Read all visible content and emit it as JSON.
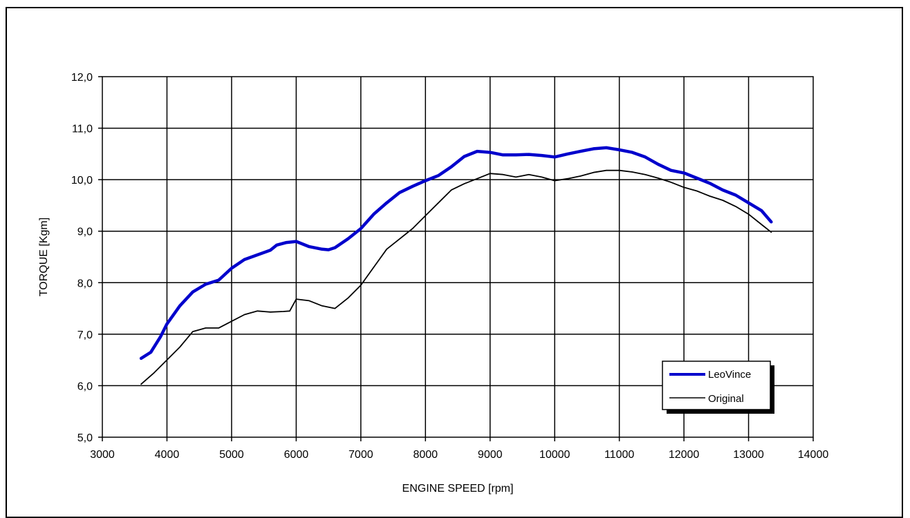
{
  "chart_data": {
    "type": "line",
    "xlabel": "ENGINE SPEED [rpm]",
    "ylabel": "TORQUE [Kgm]",
    "xlim": [
      3000,
      14000
    ],
    "ylim": [
      5.0,
      12.0
    ],
    "x_ticks": [
      "3000",
      "4000",
      "5000",
      "6000",
      "7000",
      "8000",
      "9000",
      "10000",
      "11000",
      "12000",
      "13000",
      "14000"
    ],
    "y_ticks": [
      "5,0",
      "6,0",
      "7,0",
      "8,0",
      "9,0",
      "10,0",
      "11,0",
      "12,0"
    ],
    "grid": true,
    "legend_position": "bottom-right",
    "series": [
      {
        "name": "LeoVince",
        "color": "#0000CC",
        "points": [
          [
            3600,
            6.53
          ],
          [
            3750,
            6.65
          ],
          [
            3900,
            6.95
          ],
          [
            4000,
            7.2
          ],
          [
            4200,
            7.55
          ],
          [
            4400,
            7.82
          ],
          [
            4600,
            7.97
          ],
          [
            4800,
            8.05
          ],
          [
            5000,
            8.28
          ],
          [
            5200,
            8.45
          ],
          [
            5400,
            8.54
          ],
          [
            5600,
            8.63
          ],
          [
            5700,
            8.73
          ],
          [
            5850,
            8.78
          ],
          [
            6000,
            8.8
          ],
          [
            6200,
            8.7
          ],
          [
            6400,
            8.65
          ],
          [
            6500,
            8.64
          ],
          [
            6600,
            8.68
          ],
          [
            6800,
            8.85
          ],
          [
            7000,
            9.05
          ],
          [
            7200,
            9.33
          ],
          [
            7400,
            9.55
          ],
          [
            7600,
            9.75
          ],
          [
            7800,
            9.87
          ],
          [
            8000,
            9.98
          ],
          [
            8200,
            10.08
          ],
          [
            8400,
            10.25
          ],
          [
            8600,
            10.45
          ],
          [
            8800,
            10.55
          ],
          [
            9000,
            10.53
          ],
          [
            9200,
            10.48
          ],
          [
            9400,
            10.48
          ],
          [
            9600,
            10.49
          ],
          [
            9800,
            10.47
          ],
          [
            10000,
            10.44
          ],
          [
            10200,
            10.5
          ],
          [
            10400,
            10.55
          ],
          [
            10600,
            10.6
          ],
          [
            10800,
            10.62
          ],
          [
            11000,
            10.58
          ],
          [
            11200,
            10.53
          ],
          [
            11400,
            10.44
          ],
          [
            11600,
            10.3
          ],
          [
            11800,
            10.18
          ],
          [
            12000,
            10.13
          ],
          [
            12200,
            10.03
          ],
          [
            12400,
            9.93
          ],
          [
            12600,
            9.8
          ],
          [
            12800,
            9.7
          ],
          [
            13000,
            9.55
          ],
          [
            13200,
            9.4
          ],
          [
            13350,
            9.18
          ]
        ]
      },
      {
        "name": "Original",
        "color": "#000000",
        "points": [
          [
            3600,
            6.03
          ],
          [
            3800,
            6.25
          ],
          [
            4000,
            6.5
          ],
          [
            4200,
            6.75
          ],
          [
            4400,
            7.05
          ],
          [
            4600,
            7.12
          ],
          [
            4800,
            7.12
          ],
          [
            5000,
            7.25
          ],
          [
            5200,
            7.38
          ],
          [
            5400,
            7.45
          ],
          [
            5600,
            7.43
          ],
          [
            5800,
            7.44
          ],
          [
            5900,
            7.45
          ],
          [
            6000,
            7.68
          ],
          [
            6200,
            7.65
          ],
          [
            6400,
            7.55
          ],
          [
            6600,
            7.5
          ],
          [
            6800,
            7.7
          ],
          [
            7000,
            7.95
          ],
          [
            7200,
            8.3
          ],
          [
            7400,
            8.65
          ],
          [
            7600,
            8.85
          ],
          [
            7800,
            9.05
          ],
          [
            8000,
            9.3
          ],
          [
            8200,
            9.55
          ],
          [
            8400,
            9.8
          ],
          [
            8600,
            9.92
          ],
          [
            8800,
            10.02
          ],
          [
            9000,
            10.12
          ],
          [
            9200,
            10.1
          ],
          [
            9400,
            10.05
          ],
          [
            9600,
            10.1
          ],
          [
            9800,
            10.05
          ],
          [
            10000,
            9.98
          ],
          [
            10200,
            10.02
          ],
          [
            10400,
            10.07
          ],
          [
            10600,
            10.14
          ],
          [
            10800,
            10.18
          ],
          [
            11000,
            10.18
          ],
          [
            11200,
            10.15
          ],
          [
            11400,
            10.1
          ],
          [
            11600,
            10.03
          ],
          [
            11800,
            9.95
          ],
          [
            12000,
            9.85
          ],
          [
            12200,
            9.78
          ],
          [
            12400,
            9.68
          ],
          [
            12600,
            9.6
          ],
          [
            12800,
            9.48
          ],
          [
            13000,
            9.33
          ],
          [
            13200,
            9.13
          ],
          [
            13350,
            8.98
          ]
        ]
      }
    ]
  }
}
